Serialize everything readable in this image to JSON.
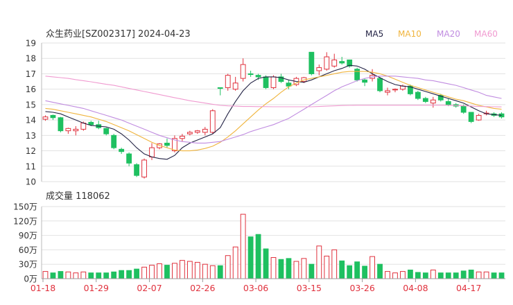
{
  "header": {
    "title": "众生药业[SZ002317] 2024-04-23",
    "legend": [
      {
        "label": "MA5",
        "color": "#222244"
      },
      {
        "label": "MA10",
        "color": "#f0b43c"
      },
      {
        "label": "MA20",
        "color": "#c08be0"
      },
      {
        "label": "MA60",
        "color": "#f09ad0"
      }
    ]
  },
  "volume_panel": {
    "title": "成交量 118062"
  },
  "colors": {
    "up": "#e0303c",
    "down": "#1ec060",
    "grid": "#e2e2e2"
  },
  "chart_data": [
    {
      "type": "candlestick",
      "title": "众生药业[SZ002317] 2024-04-23",
      "ylim": [
        10,
        19
      ],
      "yticks": [
        10,
        11,
        12,
        13,
        14,
        15,
        16,
        17,
        18,
        19
      ],
      "dates": [
        "01-18",
        "01-19",
        "01-22",
        "01-23",
        "01-24",
        "01-25",
        "01-26",
        "01-29",
        "01-30",
        "01-31",
        "02-01",
        "02-02",
        "02-05",
        "02-06",
        "02-07",
        "02-08",
        "02-19",
        "02-20",
        "02-21",
        "02-22",
        "02-23",
        "02-26",
        "02-27",
        "02-28",
        "02-29",
        "03-01",
        "03-04",
        "03-05",
        "03-06",
        "03-07",
        "03-08",
        "03-11",
        "03-12",
        "03-13",
        "03-14",
        "03-15",
        "03-18",
        "03-19",
        "03-20",
        "03-21",
        "03-22",
        "03-25",
        "03-26",
        "03-27",
        "03-28",
        "03-29",
        "04-01",
        "04-02",
        "04-03",
        "04-08",
        "04-09",
        "04-10",
        "04-11",
        "04-12",
        "04-15",
        "04-16",
        "04-17",
        "04-18",
        "04-19",
        "04-22",
        "04-23"
      ],
      "xtick_labels": [
        {
          "index": 0,
          "label": "01-18"
        },
        {
          "index": 7,
          "label": "01-29"
        },
        {
          "index": 14,
          "label": "02-07"
        },
        {
          "index": 21,
          "label": "02-26"
        },
        {
          "index": 28,
          "label": "03-06"
        },
        {
          "index": 35,
          "label": "03-15"
        },
        {
          "index": 42,
          "label": "03-26"
        },
        {
          "index": 49,
          "label": "04-08"
        },
        {
          "index": 56,
          "label": "04-17"
        }
      ],
      "ohlc": [
        [
          14.05,
          14.3,
          13.95,
          14.2
        ],
        [
          14.3,
          14.35,
          14.0,
          14.15
        ],
        [
          14.15,
          14.2,
          13.2,
          13.3
        ],
        [
          13.3,
          13.5,
          13.1,
          13.45
        ],
        [
          13.3,
          13.6,
          13.0,
          13.4
        ],
        [
          13.4,
          13.9,
          13.3,
          13.8
        ],
        [
          13.85,
          13.95,
          13.6,
          13.7
        ],
        [
          13.7,
          13.95,
          13.4,
          13.5
        ],
        [
          13.45,
          13.5,
          13.0,
          13.1
        ],
        [
          13.0,
          13.1,
          12.1,
          12.2
        ],
        [
          12.1,
          12.2,
          11.8,
          11.95
        ],
        [
          11.8,
          11.9,
          11.0,
          11.2
        ],
        [
          11.1,
          11.2,
          10.3,
          10.4
        ],
        [
          10.3,
          11.5,
          10.2,
          11.4
        ],
        [
          11.6,
          12.5,
          11.4,
          12.2
        ],
        [
          12.2,
          12.5,
          12.1,
          12.45
        ],
        [
          12.5,
          12.8,
          12.2,
          12.35
        ],
        [
          12.0,
          13.0,
          11.9,
          12.8
        ],
        [
          12.8,
          13.1,
          12.6,
          12.95
        ],
        [
          13.1,
          13.3,
          13.0,
          13.2
        ],
        [
          13.2,
          13.35,
          13.1,
          13.3
        ],
        [
          13.2,
          13.55,
          13.0,
          13.4
        ],
        [
          13.2,
          14.7,
          13.1,
          14.6
        ],
        [
          16.1,
          16.1,
          15.6,
          16.05
        ],
        [
          16.1,
          17.0,
          15.9,
          16.9
        ],
        [
          16.0,
          16.8,
          15.9,
          16.4
        ],
        [
          16.7,
          18.0,
          16.5,
          17.6
        ],
        [
          17.0,
          17.2,
          16.8,
          16.95
        ],
        [
          16.9,
          17.0,
          16.6,
          16.8
        ],
        [
          16.8,
          16.9,
          16.0,
          16.1
        ],
        [
          16.1,
          16.9,
          16.0,
          16.8
        ],
        [
          16.8,
          17.0,
          16.4,
          16.5
        ],
        [
          16.4,
          16.6,
          16.0,
          16.2
        ],
        [
          16.3,
          16.8,
          16.2,
          16.7
        ],
        [
          16.5,
          16.8,
          16.4,
          16.75
        ],
        [
          18.4,
          18.4,
          16.9,
          17.0
        ],
        [
          17.2,
          17.6,
          16.9,
          17.4
        ],
        [
          17.3,
          18.4,
          17.2,
          18.1
        ],
        [
          17.5,
          18.3,
          17.4,
          17.9
        ],
        [
          17.8,
          18.1,
          17.6,
          17.7
        ],
        [
          17.9,
          17.9,
          17.4,
          17.5
        ],
        [
          17.3,
          17.4,
          16.5,
          16.6
        ],
        [
          16.6,
          16.7,
          16.2,
          16.45
        ],
        [
          16.7,
          17.3,
          16.5,
          16.9
        ],
        [
          16.7,
          16.8,
          15.8,
          15.9
        ],
        [
          15.8,
          16.1,
          15.6,
          15.9
        ],
        [
          15.95,
          16.05,
          15.8,
          16.0
        ],
        [
          16.0,
          16.3,
          15.9,
          16.2
        ],
        [
          16.2,
          16.3,
          15.6,
          15.7
        ],
        [
          15.8,
          15.9,
          15.3,
          15.4
        ],
        [
          15.4,
          15.5,
          15.1,
          15.2
        ],
        [
          15.1,
          15.5,
          14.8,
          15.3
        ],
        [
          15.6,
          15.7,
          15.2,
          15.3
        ],
        [
          15.2,
          15.4,
          14.9,
          15.0
        ],
        [
          15.0,
          15.1,
          14.8,
          14.9
        ],
        [
          14.9,
          15.0,
          14.4,
          14.5
        ],
        [
          14.5,
          14.5,
          13.8,
          13.9
        ],
        [
          14.0,
          14.4,
          13.95,
          14.3
        ],
        [
          14.4,
          14.6,
          14.3,
          14.45
        ],
        [
          14.4,
          14.5,
          14.2,
          14.3
        ],
        [
          14.4,
          14.5,
          14.1,
          14.2
        ]
      ],
      "series": [
        {
          "name": "MA5",
          "values": [
            14.55,
            14.5,
            14.4,
            14.2,
            14.0,
            13.8,
            13.65,
            13.6,
            13.55,
            13.4,
            13.1,
            12.7,
            12.2,
            11.8,
            11.6,
            11.5,
            11.45,
            11.7,
            12.2,
            12.5,
            12.7,
            12.9,
            13.1,
            13.5,
            14.4,
            15.2,
            15.9,
            16.4,
            16.7,
            16.8,
            16.8,
            16.75,
            16.6,
            16.5,
            16.45,
            16.6,
            16.8,
            17.0,
            17.2,
            17.35,
            17.55,
            17.5,
            17.3,
            17.0,
            16.75,
            16.5,
            16.3,
            16.2,
            16.15,
            16.0,
            15.85,
            15.7,
            15.55,
            15.4,
            15.25,
            15.1,
            14.85,
            14.6,
            14.4,
            14.35,
            14.3
          ]
        },
        {
          "name": "MA10",
          "values": [
            14.75,
            14.7,
            14.6,
            14.5,
            14.4,
            14.3,
            14.2,
            14.05,
            13.9,
            13.7,
            13.5,
            13.3,
            13.05,
            12.8,
            12.55,
            12.35,
            12.2,
            12.05,
            12.0,
            12.0,
            12.05,
            12.15,
            12.3,
            12.55,
            12.9,
            13.3,
            13.75,
            14.2,
            14.65,
            15.05,
            15.4,
            15.8,
            16.15,
            16.4,
            16.6,
            16.7,
            16.8,
            16.9,
            17.0,
            17.1,
            17.15,
            17.15,
            17.15,
            17.1,
            17.0,
            16.85,
            16.65,
            16.45,
            16.25,
            16.1,
            15.95,
            15.8,
            15.65,
            15.5,
            15.35,
            15.25,
            15.1,
            14.95,
            14.85,
            14.75,
            14.7
          ]
        },
        {
          "name": "MA20",
          "values": [
            15.25,
            15.15,
            15.05,
            14.95,
            14.85,
            14.75,
            14.6,
            14.45,
            14.3,
            14.15,
            14.0,
            13.8,
            13.6,
            13.4,
            13.2,
            13.0,
            12.85,
            12.7,
            12.6,
            12.55,
            12.5,
            12.5,
            12.55,
            12.6,
            12.75,
            12.9,
            13.05,
            13.25,
            13.4,
            13.55,
            13.7,
            13.9,
            14.1,
            14.4,
            14.7,
            15.0,
            15.3,
            15.6,
            15.9,
            16.15,
            16.35,
            16.55,
            16.7,
            16.8,
            16.85,
            16.85,
            16.85,
            16.8,
            16.75,
            16.7,
            16.6,
            16.55,
            16.45,
            16.35,
            16.25,
            16.1,
            15.95,
            15.8,
            15.6,
            15.5,
            15.4
          ]
        },
        {
          "name": "MA60",
          "values": [
            16.85,
            16.8,
            16.75,
            16.7,
            16.62,
            16.55,
            16.48,
            16.4,
            16.32,
            16.25,
            16.15,
            16.05,
            15.95,
            15.85,
            15.75,
            15.65,
            15.55,
            15.45,
            15.35,
            15.25,
            15.18,
            15.1,
            15.02,
            14.95,
            14.92,
            14.9,
            14.88,
            14.88,
            14.87,
            14.87,
            14.86,
            14.86,
            14.86,
            14.86,
            14.86,
            14.86,
            14.88,
            14.9,
            14.92,
            14.94,
            14.95,
            14.96,
            14.96,
            14.96,
            14.96,
            14.96,
            14.96,
            14.96,
            14.96,
            14.96,
            14.96,
            14.96,
            14.96,
            14.96,
            14.94,
            14.92,
            14.9,
            14.88,
            14.87,
            14.86,
            14.85
          ]
        }
      ]
    },
    {
      "type": "bar",
      "title": "成交量 118062",
      "ylim": [
        0,
        150
      ],
      "ytick_labels": [
        "0万",
        "30万",
        "60万",
        "90万",
        "120万",
        "150万"
      ],
      "yticks": [
        0,
        30,
        60,
        90,
        120,
        150
      ],
      "values": [
        15,
        12,
        15,
        14,
        12,
        14,
        12,
        12,
        12,
        14,
        17,
        17,
        20,
        24,
        28,
        31,
        28,
        32,
        38,
        36,
        34,
        30,
        27,
        27,
        48,
        66,
        134,
        87,
        92,
        62,
        44,
        40,
        42,
        36,
        42,
        30,
        68,
        47,
        60,
        37,
        27,
        35,
        26,
        46,
        30,
        15,
        12,
        15,
        18,
        13,
        12,
        18,
        12,
        12,
        12,
        16,
        18,
        14,
        14,
        12,
        12
      ]
    }
  ]
}
